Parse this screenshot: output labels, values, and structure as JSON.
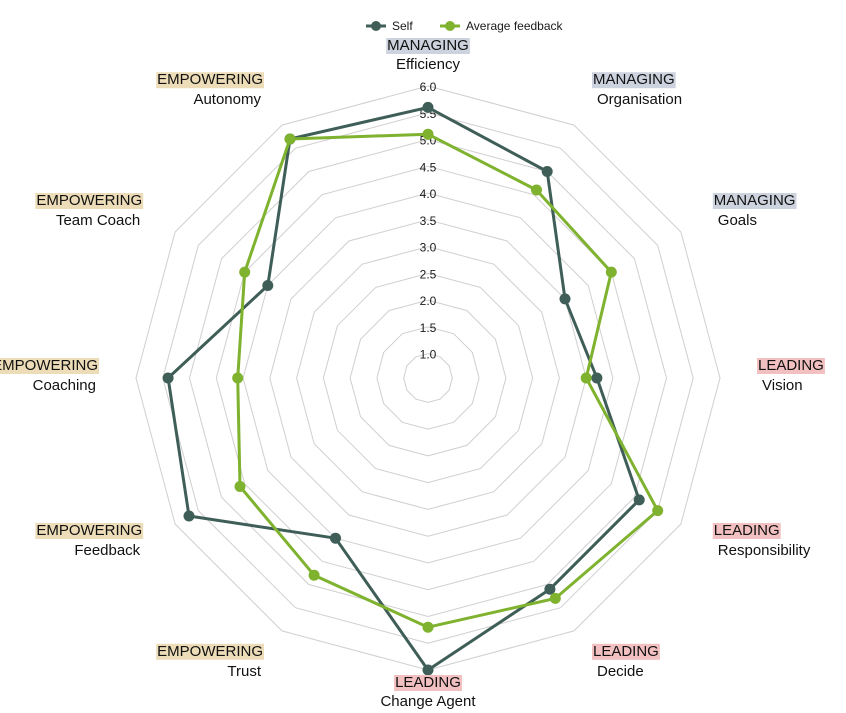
{
  "chart_data": {
    "type": "radar",
    "scale": {
      "min": 1.0,
      "max": 6.0,
      "step": 0.5
    },
    "tick_labels": [
      "1.0",
      "1.5",
      "2.0",
      "2.5",
      "3.0",
      "3.5",
      "4.0",
      "4.5",
      "5.0",
      "5.5",
      "6.0"
    ],
    "axes": [
      {
        "group": "MANAGING",
        "category": "Efficiency"
      },
      {
        "group": "MANAGING",
        "category": "Organisation"
      },
      {
        "group": "MANAGING",
        "category": "Goals"
      },
      {
        "group": "LEADING",
        "category": "Vision"
      },
      {
        "group": "LEADING",
        "category": "Responsibility"
      },
      {
        "group": "LEADING",
        "category": "Decide"
      },
      {
        "group": "LEADING",
        "category": "Change Agent"
      },
      {
        "group": "EMPOWERING",
        "category": "Trust"
      },
      {
        "group": "EMPOWERING",
        "category": "Feedback"
      },
      {
        "group": "EMPOWERING",
        "category": "Coaching"
      },
      {
        "group": "EMPOWERING",
        "category": "Team Coach"
      },
      {
        "group": "EMPOWERING",
        "category": "Autonomy"
      }
    ],
    "group_colors": {
      "MANAGING": "#cdd3de",
      "LEADING": "#f2c0c0",
      "EMPOWERING": "#ecdcb8"
    },
    "series": [
      {
        "name": "Self",
        "color": "#3f5e57",
        "values": [
          5.6,
          5.0,
          3.5,
          3.7,
          5.1,
          5.1,
          6.0,
          4.0,
          5.7,
          5.4,
          4.0,
          5.7
        ]
      },
      {
        "name": "Average feedback",
        "color": "#7fb22e",
        "values": [
          5.1,
          4.6,
          4.5,
          3.5,
          5.5,
          5.3,
          5.2,
          4.8,
          4.6,
          4.1,
          4.5,
          5.7
        ]
      }
    ],
    "legend_position": "top-center",
    "grid": true
  }
}
